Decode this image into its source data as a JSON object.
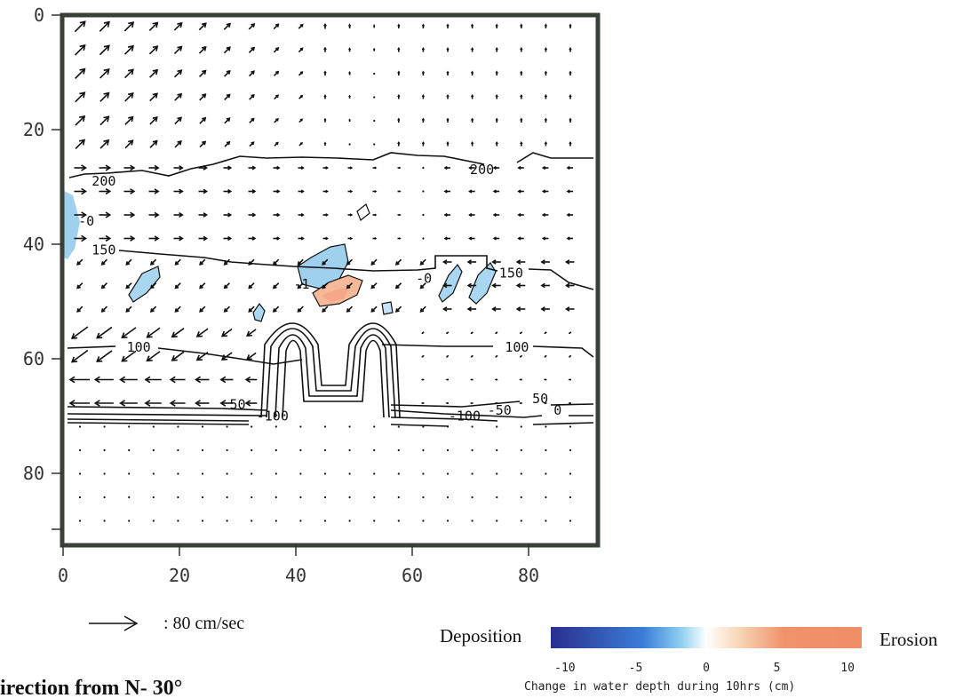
{
  "chart_data": {
    "type": "heatmap",
    "title": "",
    "x_ticks": [
      0,
      20,
      40,
      60,
      80
    ],
    "y_ticks": [
      0,
      20,
      40,
      60,
      80
    ],
    "xlim": [
      0,
      92
    ],
    "ylim": [
      0,
      92
    ],
    "y_inverted": true,
    "grid": false,
    "contour_labels": [
      {
        "text": "200",
        "x": 72,
        "y": 27
      },
      {
        "text": "200",
        "x": 7,
        "y": 29
      },
      {
        "text": "-0",
        "x": 4,
        "y": 36
      },
      {
        "text": "150",
        "x": 7,
        "y": 41
      },
      {
        "text": "150",
        "x": 77,
        "y": 45
      },
      {
        "text": "-0",
        "x": 62,
        "y": 46
      },
      {
        "text": "-1",
        "x": 41,
        "y": 47
      },
      {
        "text": "100",
        "x": 13,
        "y": 58
      },
      {
        "text": "100",
        "x": 78,
        "y": 58
      },
      {
        "text": "50",
        "x": 30,
        "y": 68
      },
      {
        "text": "-100",
        "x": 36,
        "y": 70
      },
      {
        "text": "50",
        "x": 82,
        "y": 67
      },
      {
        "text": "-100",
        "x": 69,
        "y": 70
      },
      {
        "text": "-50",
        "x": 75,
        "y": 69
      },
      {
        "text": "0",
        "x": 85,
        "y": 69
      }
    ],
    "vector_scale": {
      "label": ": 80 cm/sec",
      "value": 80,
      "unit": "cm/sec"
    },
    "colorbar": {
      "left_label": "Deposition",
      "right_label": "Erosion",
      "ticks": [
        "-10",
        "-5",
        "0",
        "5",
        "10"
      ],
      "range": [
        -11,
        11
      ],
      "caption": "Change in water depth during 10hrs (cm)"
    },
    "bottom_caption": "irection from N- 30°"
  },
  "colors": {
    "frame": "#3a3f38",
    "deposition": "#2f3f9f",
    "light_blue": "#9fd0ee",
    "erosion": "#f0926a",
    "contour": "#111111"
  }
}
